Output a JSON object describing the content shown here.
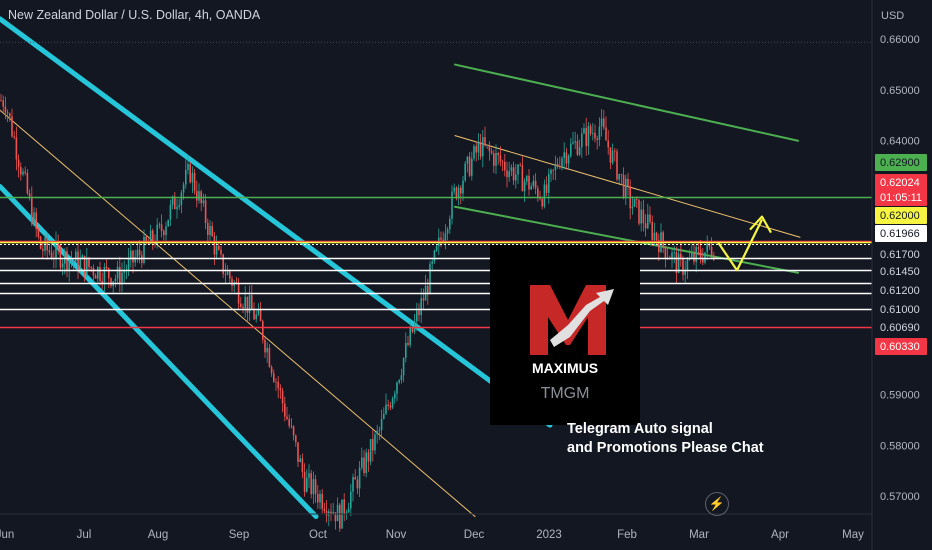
{
  "header": {
    "title": "New Zealand Dollar / U.S. Dollar, 4h, OANDA",
    "currency": "USD"
  },
  "watermark": {
    "brand": "MAXIMUS",
    "broker": "TMGM",
    "message_line1": "Telegram Auto signal",
    "message_line2": "and Promotions Please Chat"
  },
  "icons": {
    "bolt": "lightning-icon"
  },
  "chart_data": {
    "type": "candlestick",
    "symbol": "NZDUSD",
    "timeframe": "4h",
    "source": "OANDA",
    "x_tick_labels": [
      "Jun",
      "Jul",
      "Aug",
      "Sep",
      "Oct",
      "Nov",
      "Dec",
      "2023",
      "Feb",
      "Mar",
      "Apr",
      "May"
    ],
    "y_tick_labels": [
      "0.66000",
      "0.65000",
      "0.64000",
      "0.59000",
      "0.58000",
      "0.57000"
    ],
    "ylim": [
      0.5665,
      0.6622
    ],
    "grid": false,
    "price_approx_path": [
      [
        "Jun",
        0.648
      ],
      [
        "Jul",
        0.619
      ],
      [
        "Jul",
        0.613
      ],
      [
        "Aug",
        0.622
      ],
      [
        "Aug",
        0.634
      ],
      [
        "Sep",
        0.616
      ],
      [
        "Sep",
        0.604
      ],
      [
        "Oct",
        0.573
      ],
      [
        "Oct",
        0.566
      ],
      [
        "Nov",
        0.583
      ],
      [
        "Nov",
        0.61
      ],
      [
        "Dec",
        0.63
      ],
      [
        "Dec",
        0.639
      ],
      [
        "2023",
        0.629
      ],
      [
        "2023",
        0.637
      ],
      [
        "Feb",
        0.643
      ],
      [
        "Feb",
        0.628
      ],
      [
        "Mar",
        0.615
      ],
      [
        "Mar",
        0.619
      ]
    ],
    "projection": {
      "color": "#f5f542",
      "points": [
        [
          "Mar",
          0.62
        ],
        [
          "Mar",
          0.6145
        ],
        [
          "Apr",
          0.6225
        ]
      ]
    },
    "horizontal_levels": [
      {
        "price": 0.629,
        "label": "0.62900",
        "color": "#4caf50",
        "label_bg": "#4caf50",
        "label_fg": "#131722"
      },
      {
        "price": 0.62024,
        "label": "0.62024",
        "color": "#f23645",
        "label_bg": "#f23645",
        "label_fg": "#ffffff",
        "sub_label": "01:05:11"
      },
      {
        "price": 0.62,
        "label": "0.62000",
        "color": "#f5f542",
        "label_bg": "#f5f542",
        "label_fg": "#131722"
      },
      {
        "price": 0.61966,
        "label": "0.61966",
        "color": "#ffffff",
        "label_bg": "#ffffff",
        "label_fg": "#131722"
      },
      {
        "price": 0.617,
        "label": "0.61700",
        "color": "#ffffff",
        "label_bg": "#131722",
        "label_fg": "#d1d4dc"
      },
      {
        "price": 0.6145,
        "label": "0.61450",
        "color": "#ffffff",
        "label_bg": "#131722",
        "label_fg": "#d1d4dc"
      },
      {
        "price": 0.612,
        "label": "0.61200",
        "color": "#ffffff",
        "label_bg": "#131722",
        "label_fg": "#d1d4dc"
      },
      {
        "price": 0.61,
        "label": "0.61000",
        "color": "#ffffff",
        "label_bg": "#131722",
        "label_fg": "#d1d4dc"
      },
      {
        "price": 0.6069,
        "label": "0.60690",
        "color": "#ffffff",
        "label_bg": "#131722",
        "label_fg": "#d1d4dc"
      },
      {
        "price": 0.6033,
        "label": "0.60330",
        "color": "#f23645",
        "label_bg": "#f23645",
        "label_fg": "#ffffff"
      }
    ],
    "trendlines": [
      {
        "color": "#26c6da",
        "from": [
          "Jun",
          0.664
        ],
        "to": [
          "Dec",
          0.584
        ]
      },
      {
        "color": "#26c6da",
        "from": [
          "Jun",
          0.631
        ],
        "to": [
          "Oct",
          0.566
        ]
      },
      {
        "color": "#f0c36d",
        "from": [
          "Jun",
          0.646
        ],
        "to": [
          "Dec",
          0.566
        ]
      },
      {
        "color": "#f0c36d",
        "from": [
          "Dec",
          0.641
        ],
        "to": [
          "Apr",
          0.621
        ]
      },
      {
        "color": "#4caf50",
        "from": [
          "Dec",
          0.655
        ],
        "to": [
          "Apr",
          0.64
        ]
      },
      {
        "color": "#4caf50",
        "from": [
          "Dec",
          0.627
        ],
        "to": [
          "Apr",
          0.614
        ]
      }
    ],
    "colors": {
      "up": "#26a69a",
      "down": "#ef5350",
      "background": "#131722"
    }
  }
}
